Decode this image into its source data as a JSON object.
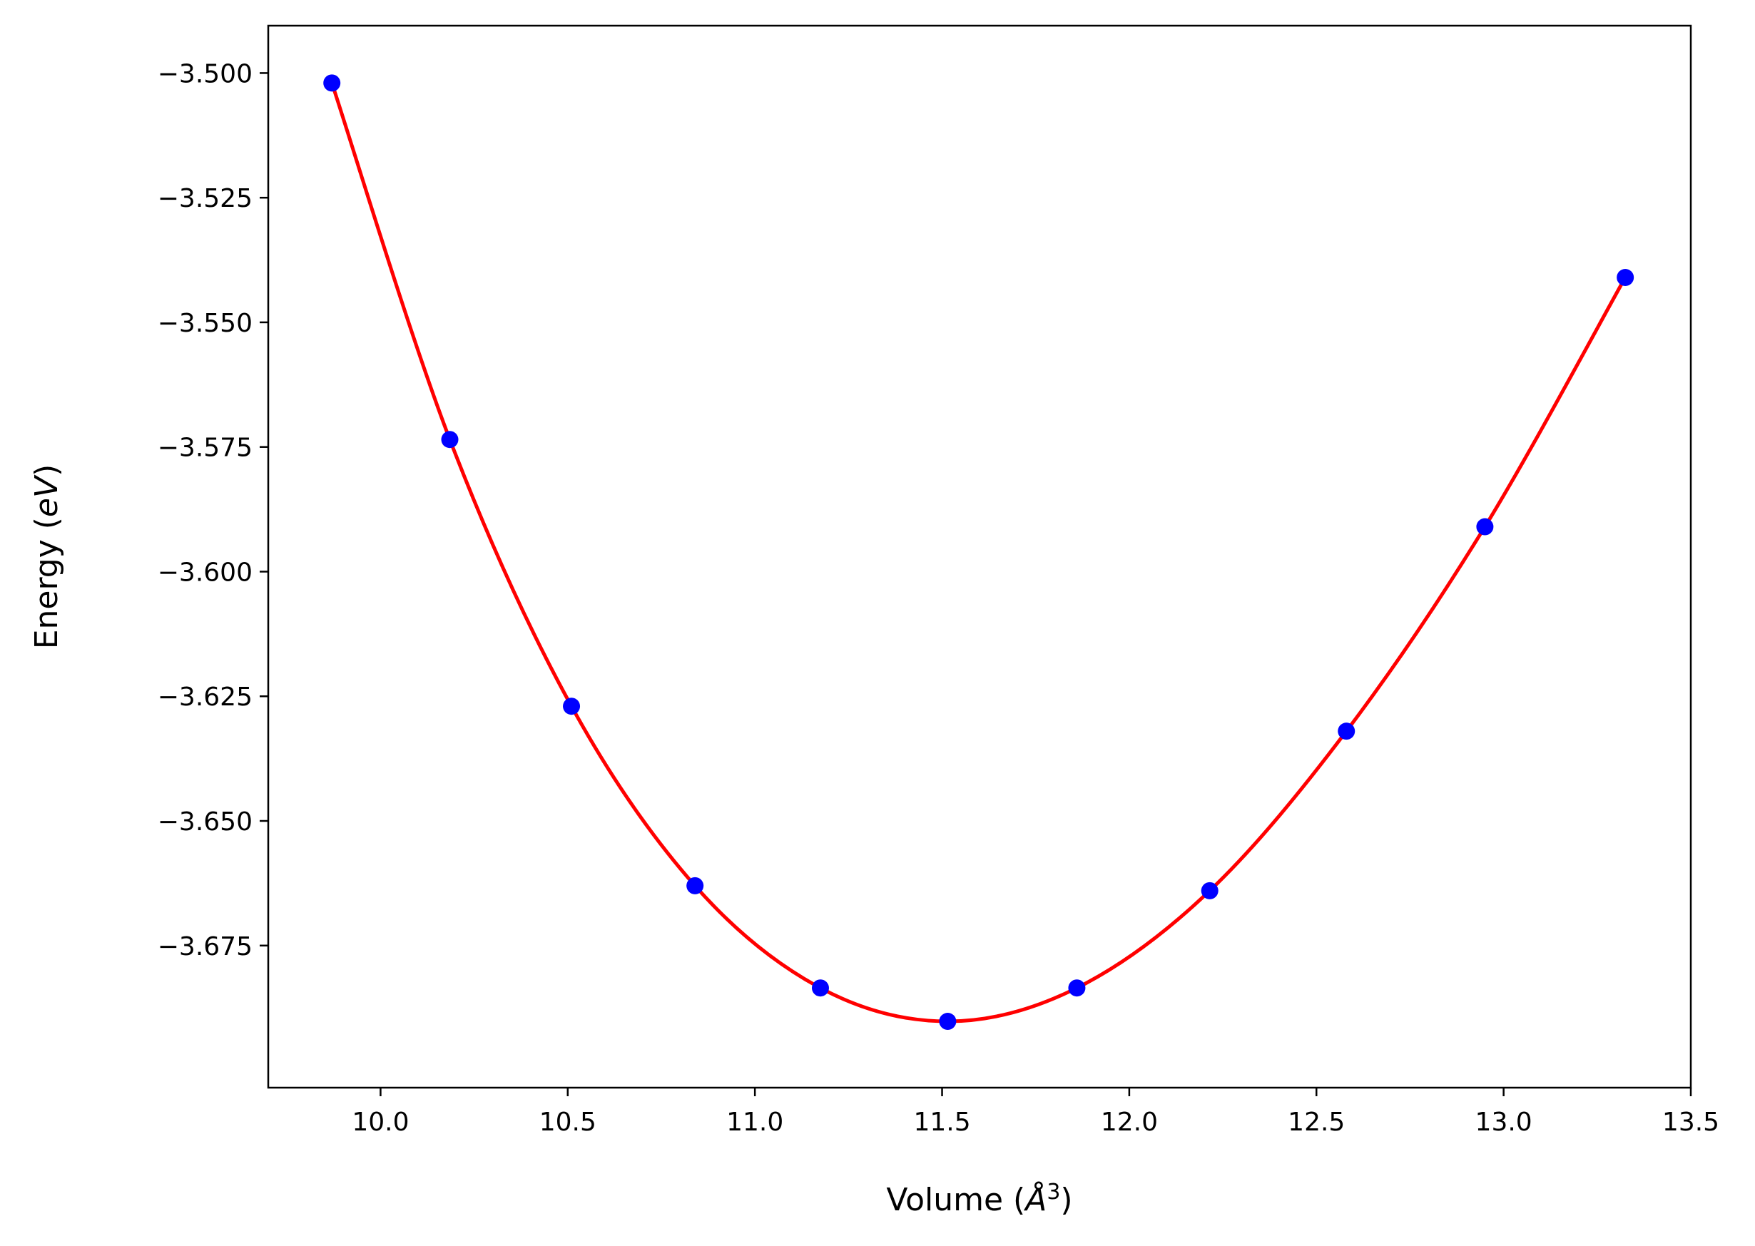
{
  "chart_data": {
    "type": "scatter",
    "title": "",
    "xlabel_main": "Volume (",
    "xlabel_symbol": "Å",
    "xlabel_exp": "3",
    "xlabel_close": ")",
    "ylabel_main": "Energy (",
    "ylabel_unit": "eV",
    "ylabel_close": ")",
    "xlim": [
      9.7,
      13.5
    ],
    "ylim": [
      -3.7035,
      -3.4905
    ],
    "x_ticks": [
      10.0,
      10.5,
      11.0,
      11.5,
      12.0,
      12.5,
      13.0,
      13.5
    ],
    "x_tick_labels": [
      "10.0",
      "10.5",
      "11.0",
      "11.5",
      "12.0",
      "12.5",
      "13.0",
      "13.5"
    ],
    "y_ticks": [
      -3.5,
      -3.525,
      -3.55,
      -3.575,
      -3.6,
      -3.625,
      -3.65,
      -3.675
    ],
    "y_tick_labels": [
      "−3.500",
      "−3.525",
      "−3.550",
      "−3.575",
      "−3.600",
      "−3.625",
      "−3.650",
      "−3.675"
    ],
    "grid": false,
    "legend": "none",
    "colors": {
      "points": "#0000ff",
      "fit": "#ff0000",
      "axes": "#000000"
    },
    "series": [
      {
        "kind": "points",
        "x": [
          9.87,
          10.185,
          10.51,
          10.84,
          11.175,
          11.515,
          11.86,
          12.215,
          12.58,
          12.95,
          13.325
        ],
        "y": [
          -3.502,
          -3.5735,
          -3.627,
          -3.663,
          -3.6835,
          -3.6902,
          -3.6835,
          -3.664,
          -3.632,
          -3.591,
          -3.541
        ]
      },
      {
        "kind": "fit-line",
        "x": [
          9.87,
          10.185,
          10.51,
          10.84,
          11.175,
          11.515,
          11.86,
          12.215,
          12.58,
          12.95,
          13.325
        ],
        "y": [
          -3.502,
          -3.5735,
          -3.627,
          -3.663,
          -3.6835,
          -3.6902,
          -3.6835,
          -3.664,
          -3.632,
          -3.591,
          -3.541
        ]
      }
    ]
  }
}
